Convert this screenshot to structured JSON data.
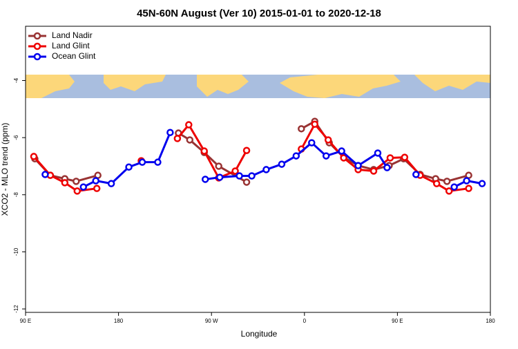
{
  "chart_data": {
    "type": "line",
    "title": "45N-60N August (Ver 10)   2015-01-01 to 2020-12-18",
    "x_label": "Longitude",
    "y_label": "XCO2 - MLO trend (ppm)",
    "xlim": [
      90,
      540
    ],
    "xticks": [
      {
        "value": 90,
        "label": "90 E"
      },
      {
        "value": 180,
        "label": "180"
      },
      {
        "value": 270,
        "label": "90 W"
      },
      {
        "value": 360,
        "label": "0"
      },
      {
        "value": 450,
        "label": "90 E"
      },
      {
        "value": 540,
        "label": "180"
      }
    ],
    "ylim": [
      -12.12,
      -2.1
    ],
    "yticks": [
      -12,
      -10,
      -8,
      -6,
      -4
    ],
    "legend": "top-left",
    "series": [
      {
        "name": "Land Nadir",
        "color": "#993333",
        "x": [
          99,
          114,
          128,
          139,
          160,
          null,
          238,
          249,
          263,
          277,
          304,
          null,
          357,
          370,
          384,
          398,
          412,
          427,
          442,
          456,
          472,
          487,
          498,
          519
        ],
        "values": [
          -6.74,
          -7.32,
          -7.44,
          -7.53,
          -7.32,
          null,
          -5.84,
          -6.08,
          -6.52,
          -7.0,
          -7.56,
          null,
          -5.69,
          -5.43,
          -6.18,
          -6.69,
          -6.98,
          -7.12,
          -6.98,
          -6.74,
          -7.29,
          -7.44,
          -7.53,
          -7.32
        ]
      },
      {
        "name": "Land Glint",
        "color": "#ee0000",
        "x": [
          98,
          114,
          128,
          140,
          159,
          null,
          202,
          null,
          237,
          248,
          263,
          277,
          293,
          304,
          null,
          357,
          370,
          383,
          398,
          412,
          427,
          443,
          457,
          472,
          488,
          500,
          519
        ],
        "values": [
          -6.66,
          -7.32,
          -7.58,
          -7.87,
          -7.78,
          null,
          -6.81,
          null,
          -6.03,
          -5.55,
          -6.47,
          -7.41,
          -7.17,
          -6.45,
          null,
          -6.4,
          -5.53,
          -6.08,
          -6.71,
          -7.12,
          -7.17,
          -6.71,
          -6.69,
          -7.32,
          -7.61,
          -7.87,
          -7.78
        ]
      },
      {
        "name": "Ocean Glint",
        "color": "#0000ee",
        "x": [
          109,
          null,
          146,
          158,
          173,
          190,
          203,
          218,
          230,
          null,
          264,
          278,
          297,
          309,
          323,
          338,
          352,
          367,
          381,
          396,
          412,
          431,
          440,
          null,
          468,
          null,
          505,
          517,
          532
        ],
        "values": [
          -7.29,
          null,
          -7.73,
          -7.51,
          -7.61,
          -7.03,
          -6.86,
          -6.86,
          -5.82,
          null,
          -7.46,
          -7.39,
          -7.34,
          -7.34,
          -7.12,
          -6.93,
          -6.64,
          -6.18,
          -6.64,
          -6.47,
          -6.98,
          -6.54,
          -7.05,
          null,
          -7.29,
          null,
          -7.73,
          -7.51,
          -7.61
        ]
      }
    ]
  }
}
